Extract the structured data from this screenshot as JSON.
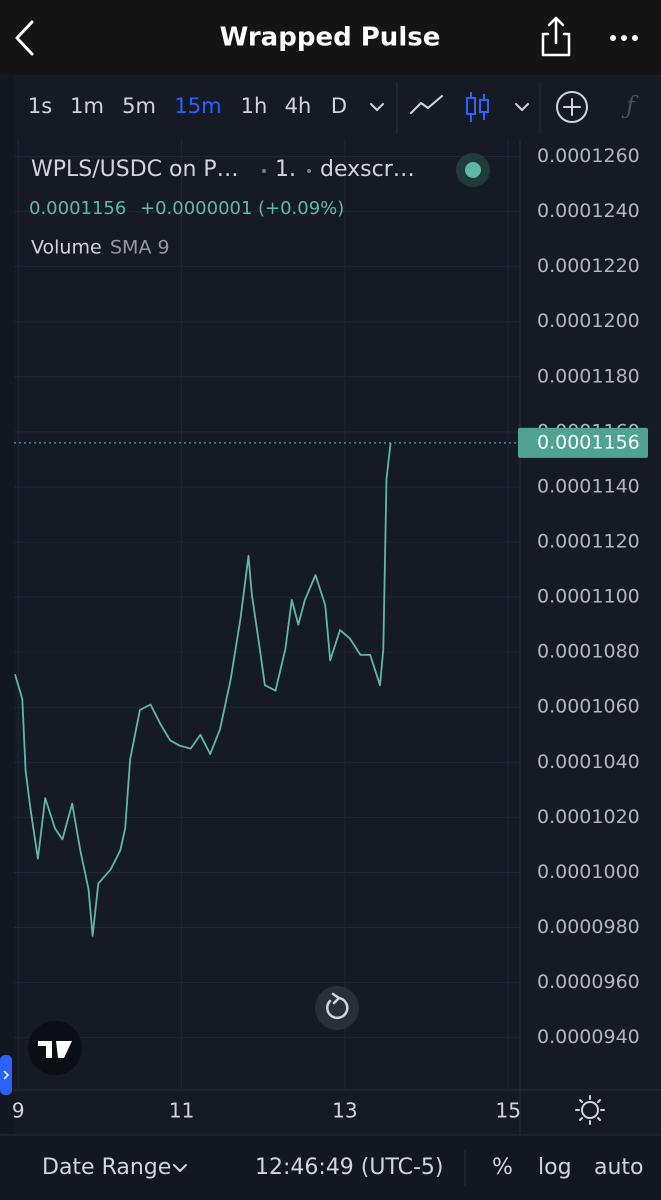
{
  "header": {
    "title": "Wrapped Pulse"
  },
  "toolbar": {
    "intervals": [
      "1s",
      "1m",
      "5m",
      "15m",
      "1h",
      "4h",
      "D"
    ],
    "active_interval": 3
  },
  "legend": {
    "symbol": "WPLS/USDC on P…",
    "resolution": "1.",
    "source": "dexscr…",
    "price": "0.0001156",
    "change": "+0.0000001",
    "change_percent": "(+0.09%)",
    "indicator": "Volume",
    "indicator_args": "SMA 9"
  },
  "chart_data": {
    "type": "line",
    "x": [
      8.96,
      9.05,
      9.09,
      9.15,
      9.24,
      9.33,
      9.45,
      9.54,
      9.66,
      9.76,
      9.86,
      9.91,
      9.98,
      10.13,
      10.25,
      10.31,
      10.37,
      10.49,
      10.62,
      10.74,
      10.86,
      10.98,
      11.11,
      11.23,
      11.35,
      11.47,
      11.6,
      11.72,
      11.82,
      11.86,
      11.94,
      12.02,
      12.15,
      12.27,
      12.35,
      12.43,
      12.51,
      12.64,
      12.76,
      12.82,
      12.94,
      13.06,
      13.19,
      13.31,
      13.43,
      13.47,
      13.51,
      13.56
    ],
    "series": [
      {
        "name": "WPLS/USDC",
        "color": "#5fb8a6",
        "values": [
          0.0001072,
          0.0001063,
          0.0001037,
          0.0001023,
          0.0001005,
          0.0001027,
          0.0001016,
          0.0001012,
          0.0001025,
          0.0001008,
          9.94e-05,
          9.77e-05,
          9.96e-05,
          0.0001001,
          0.0001008,
          0.0001016,
          0.0001041,
          0.0001059,
          0.0001061,
          0.0001054,
          0.0001048,
          0.0001046,
          0.0001045,
          0.000105,
          0.0001043,
          0.0001052,
          0.000107,
          0.0001092,
          0.0001115,
          0.0001101,
          0.0001085,
          0.0001068,
          0.0001066,
          0.0001081,
          0.0001099,
          0.000109,
          0.0001099,
          0.0001108,
          0.0001097,
          0.0001077,
          0.0001088,
          0.0001085,
          0.0001079,
          0.0001079,
          0.0001068,
          0.0001081,
          0.0001143,
          0.0001156
        ]
      }
    ],
    "last_price": {
      "value": 0.0001156,
      "label": "0.0001156"
    },
    "xlim": [
      8.96,
      15.12
    ],
    "xticks": [
      9,
      11,
      13,
      15
    ],
    "ylim": [
      9.21e-05,
      0.0001266
    ],
    "yticks": [
      {
        "value": 0.000126,
        "label": "0.0001260"
      },
      {
        "value": 0.000124,
        "label": "0.0001240"
      },
      {
        "value": 0.000122,
        "label": "0.0001220"
      },
      {
        "value": 0.00012,
        "label": "0.0001200"
      },
      {
        "value": 0.000118,
        "label": "0.0001180"
      },
      {
        "value": 0.000116,
        "label": "0.0001160"
      },
      {
        "value": 0.000114,
        "label": "0.0001140"
      },
      {
        "value": 0.000112,
        "label": "0.0001120"
      },
      {
        "value": 0.00011,
        "label": "0.0001100"
      },
      {
        "value": 0.000108,
        "label": "0.0001080"
      },
      {
        "value": 0.000106,
        "label": "0.0001060"
      },
      {
        "value": 0.000104,
        "label": "0.0001040"
      },
      {
        "value": 0.000102,
        "label": "0.0001020"
      },
      {
        "value": 0.0001,
        "label": "0.0001000"
      },
      {
        "value": 9.8e-05,
        "label": "0.0000980"
      },
      {
        "value": 9.6e-05,
        "label": "0.0000960"
      },
      {
        "value": 9.4e-05,
        "label": "0.0000940"
      }
    ],
    "grid": true
  },
  "footer": {
    "date_range": "Date Range",
    "time": "12:46:49 (UTC-5)",
    "percent": "%",
    "log": "log",
    "auto": "auto"
  }
}
